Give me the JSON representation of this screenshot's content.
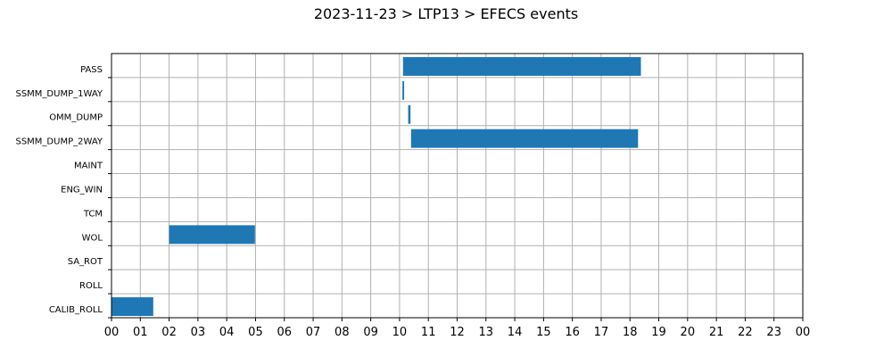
{
  "chart_data": {
    "type": "bar",
    "orientation": "horizontal-gantt",
    "title": "2023-11-23 > LTP13 > EFECS events",
    "xlabel": "",
    "ylabel": "",
    "grid": true,
    "bar_color": "#1f77b4",
    "xlim": [
      0,
      24
    ],
    "x_tick_labels": [
      "00",
      "01",
      "02",
      "03",
      "04",
      "05",
      "06",
      "07",
      "08",
      "09",
      "10",
      "11",
      "12",
      "13",
      "14",
      "15",
      "16",
      "17",
      "18",
      "19",
      "20",
      "21",
      "22",
      "23",
      "00"
    ],
    "categories": [
      "PASS",
      "SSMM_DUMP_1WAY",
      "OMM_DUMP",
      "SSMM_DUMP_2WAY",
      "MAINT",
      "ENG_WIN",
      "TCM",
      "WOL",
      "SA_ROT",
      "ROLL",
      "CALIB_ROLL"
    ],
    "events": [
      {
        "category": "PASS",
        "start": 10.12,
        "end": 18.38
      },
      {
        "category": "SSMM_DUMP_1WAY",
        "start": 10.1,
        "end": 10.16
      },
      {
        "category": "OMM_DUMP",
        "start": 10.3,
        "end": 10.38
      },
      {
        "category": "SSMM_DUMP_2WAY",
        "start": 10.4,
        "end": 18.28
      },
      {
        "category": "WOL",
        "start": 2.0,
        "end": 4.98
      },
      {
        "category": "CALIB_ROLL",
        "start": 0.0,
        "end": 1.45
      }
    ]
  }
}
